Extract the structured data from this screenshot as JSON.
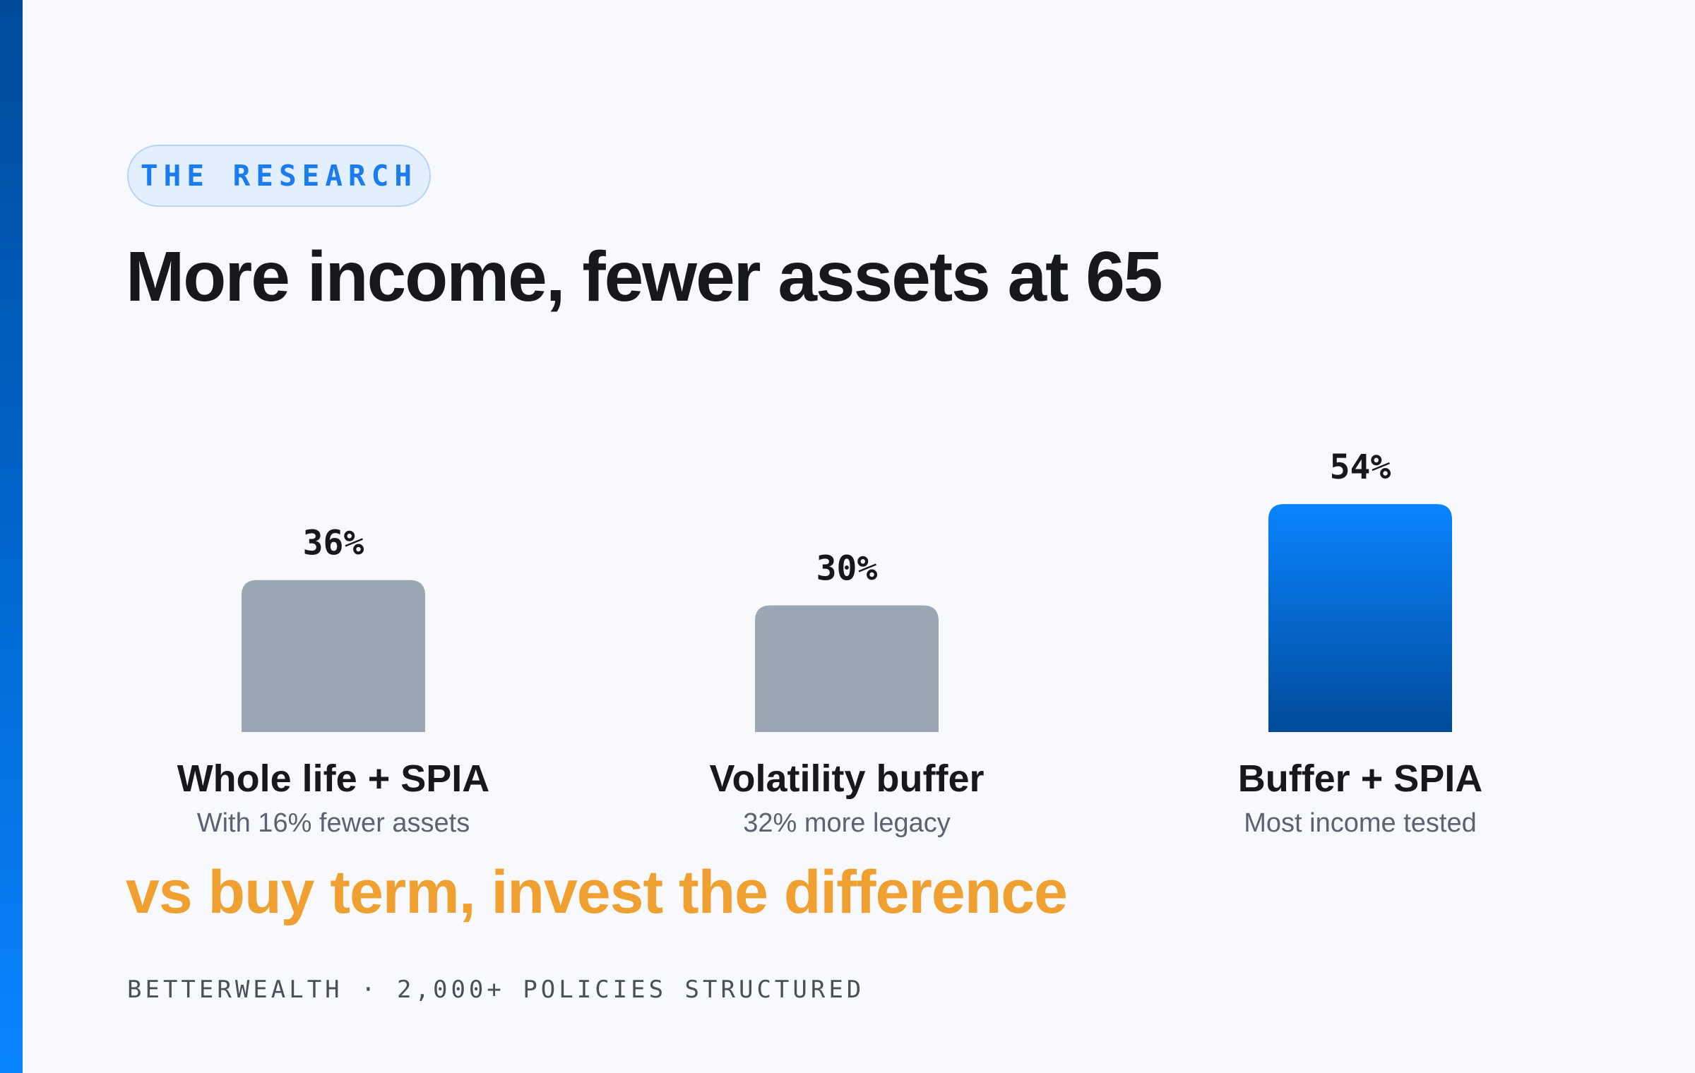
{
  "badge": "THE RESEARCH",
  "title": "More income, fewer assets at 65",
  "chart_data": {
    "type": "bar",
    "categories": [
      "Whole life + SPIA",
      "Volatility buffer",
      "Buffer + SPIA"
    ],
    "values": [
      36,
      30,
      54
    ],
    "data_labels": [
      "36%",
      "30%",
      "54%"
    ],
    "descriptions": [
      "With 16% fewer assets",
      "32% more legacy",
      "Most income tested"
    ],
    "highlight_index": 2,
    "ylim": [
      0,
      100
    ],
    "grid": false,
    "colors": {
      "default": "#9ba8b4",
      "highlight_top": "#0a84ff",
      "highlight_bottom": "#004a99"
    }
  },
  "subtitle": "vs buy term, invest the difference",
  "footer": "BETTERWEALTH · 2,000+ POLICIES STRUCTURED"
}
